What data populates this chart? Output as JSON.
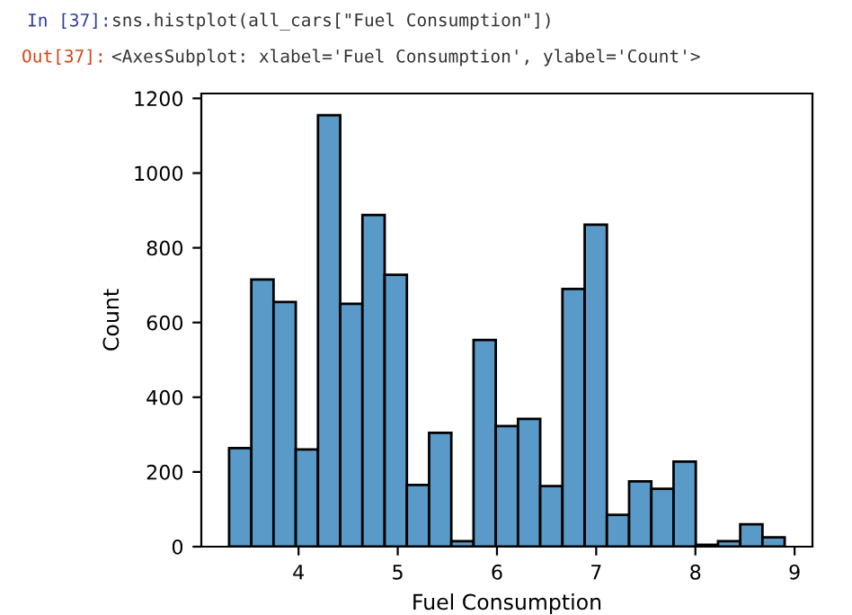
{
  "chart_data": {
    "type": "histogram",
    "xlabel": "Fuel Consumption",
    "ylabel": "Count",
    "annotations": [
      "In [37]:",
      "sns.histplot(all_cars[\"Fuel Consumption\"])",
      "Out[37]:",
      "<AxesSubplot: xlabel='Fuel Consumption', ylabel='Count'>"
    ],
    "bins": [
      3.3,
      3.524,
      3.748,
      3.972,
      4.196,
      4.42,
      4.644,
      4.868,
      5.092,
      5.316,
      5.54,
      5.764,
      5.988,
      6.212,
      6.436,
      6.66,
      6.884,
      7.108,
      7.332,
      7.556,
      7.78,
      8.004,
      8.228,
      8.452,
      8.676,
      8.9
    ],
    "values": [
      264,
      715,
      655,
      260,
      1155,
      650,
      888,
      728,
      165,
      305,
      15,
      553,
      323,
      342,
      162,
      690,
      862,
      85,
      175,
      155,
      228,
      5,
      15,
      60,
      25
    ],
    "color": "#5a9ac9",
    "xlim": [
      3.02,
      9.18
    ],
    "xticks": [
      4,
      5,
      6,
      7,
      8,
      9
    ],
    "ylim": [
      0,
      1213
    ],
    "yticks": [
      0,
      200,
      400,
      600,
      800,
      1000,
      1200
    ],
    "grid": false
  }
}
